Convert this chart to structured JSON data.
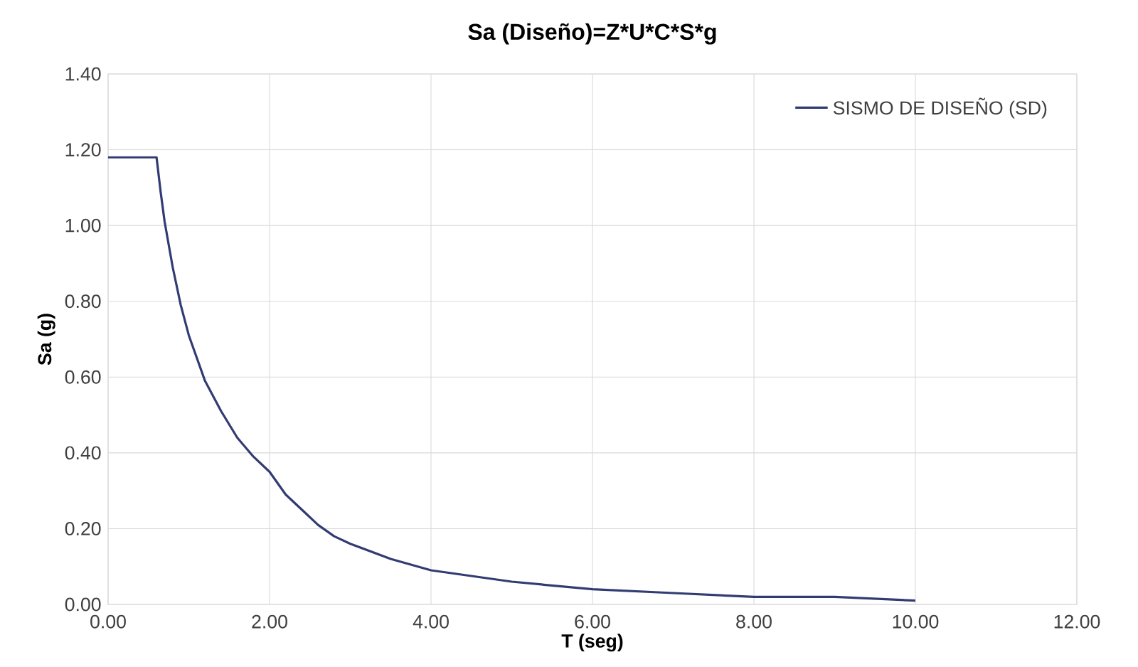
{
  "chart_data": {
    "type": "line",
    "title": "Sa (Diseño)=Z*U*C*S*g",
    "xlabel": "T (seg)",
    "ylabel": "Sa (g)",
    "x": [
      0,
      0.6,
      0.65,
      0.7,
      0.8,
      0.9,
      1.0,
      1.2,
      1.4,
      1.6,
      1.8,
      2.0,
      2.2,
      2.4,
      2.6,
      2.8,
      3.0,
      3.5,
      4,
      5,
      6,
      7,
      8,
      9,
      10
    ],
    "series": [
      {
        "name": "SISMO DE DISEÑO (SD)",
        "color": "#323c73",
        "values": [
          1.18,
          1.18,
          1.09,
          1.01,
          0.89,
          0.79,
          0.71,
          0.59,
          0.51,
          0.44,
          0.39,
          0.35,
          0.29,
          0.25,
          0.21,
          0.18,
          0.16,
          0.12,
          0.09,
          0.06,
          0.04,
          0.03,
          0.02,
          0.02,
          0.01
        ]
      }
    ],
    "xlim": [
      0,
      12
    ],
    "ylim": [
      0,
      1.4
    ],
    "xticks": [
      {
        "value": 0,
        "label": "0.00"
      },
      {
        "value": 2,
        "label": "2.00"
      },
      {
        "value": 4,
        "label": "4.00"
      },
      {
        "value": 6,
        "label": "6.00"
      },
      {
        "value": 8,
        "label": "8.00"
      },
      {
        "value": 10,
        "label": "10.00"
      },
      {
        "value": 12,
        "label": "12.00"
      }
    ],
    "yticks": [
      {
        "value": 0,
        "label": "0.00"
      },
      {
        "value": 0.2,
        "label": "0.20"
      },
      {
        "value": 0.4,
        "label": "0.40"
      },
      {
        "value": 0.6,
        "label": "0.60"
      },
      {
        "value": 0.8,
        "label": "0.80"
      },
      {
        "value": 1.0,
        "label": "1.00"
      },
      {
        "value": 1.2,
        "label": "1.20"
      },
      {
        "value": 1.4,
        "label": "1.40"
      }
    ],
    "grid": true,
    "legend": "top right",
    "marker": "none",
    "line_style": "solid"
  }
}
